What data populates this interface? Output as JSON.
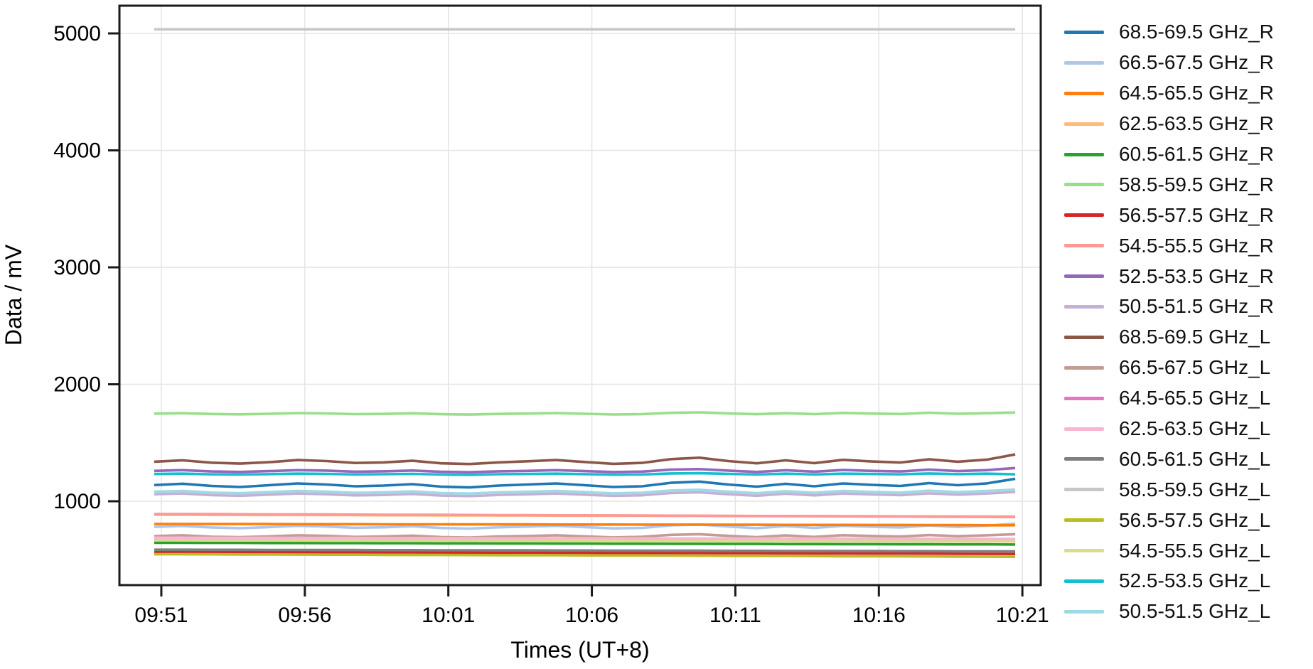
{
  "figure": {
    "x_axis_label": "Times (UT+8)",
    "y_axis_label": "Data / mV"
  },
  "chart_data": {
    "type": "line",
    "title": "",
    "xlabel": "Times (UT+8)",
    "ylabel": "Data / mV",
    "grid": true,
    "legend_position": "right",
    "x_tick_labels": [
      "09:51",
      "09:56",
      "10:01",
      "10:06",
      "10:11",
      "10:16",
      "10:21"
    ],
    "x_tick_minutes": [
      0,
      5,
      10,
      15,
      20,
      25,
      30
    ],
    "y_ticks": [
      1000,
      2000,
      3000,
      4000,
      5000
    ],
    "xlim_minutes": [
      -1.46,
      30.64
    ],
    "ylim": [
      283,
      5237
    ],
    "t_start_min": -0.25,
    "t_step_min": 1.0,
    "axis_color": "#1a1a1a",
    "grid_color": "#e4e4e4",
    "series": [
      {
        "name": "68.5-69.5 GHz_R",
        "color": "#1f77b4",
        "values": [
          1138,
          1150,
          1131,
          1122,
          1137,
          1152,
          1143,
          1128,
          1134,
          1146,
          1125,
          1118,
          1134,
          1143,
          1152,
          1137,
          1122,
          1128,
          1158,
          1168,
          1143,
          1125,
          1149,
          1128,
          1152,
          1140,
          1131,
          1155,
          1137,
          1152,
          1192
        ]
      },
      {
        "name": "66.5-67.5 GHz_R",
        "color": "#aec7e8",
        "values": [
          781,
          789,
          776,
          770,
          779,
          790,
          784,
          773,
          777,
          786,
          771,
          766,
          777,
          783,
          790,
          779,
          768,
          772,
          794,
          801,
          784,
          770,
          788,
          772,
          790,
          782,
          776,
          793,
          780,
          792,
          808
        ]
      },
      {
        "name": "64.5-65.5 GHz_R",
        "color": "#ff7f0e",
        "values": [
          806,
          806,
          805,
          805,
          805,
          804,
          804,
          804,
          803,
          803,
          803,
          802,
          802,
          802,
          801,
          801,
          801,
          800,
          800,
          800,
          799,
          799,
          798,
          798,
          798,
          797,
          797,
          796,
          796,
          795,
          795
        ]
      },
      {
        "name": "62.5-63.5 GHz_R",
        "color": "#ffbb78",
        "values": [
          884,
          884,
          883,
          883,
          882,
          882,
          881,
          881,
          880,
          880,
          879,
          879,
          878,
          878,
          877,
          877,
          876,
          876,
          875,
          875,
          874,
          874,
          873,
          873,
          872,
          872,
          871,
          871,
          870,
          870,
          869
        ]
      },
      {
        "name": "60.5-61.5 GHz_R",
        "color": "#2ca02c",
        "values": [
          645,
          645,
          644,
          644,
          643,
          643,
          642,
          642,
          641,
          641,
          640,
          640,
          639,
          639,
          638,
          638,
          637,
          637,
          636,
          636,
          635,
          635,
          634,
          634,
          633,
          633,
          632,
          632,
          631,
          631,
          630
        ]
      },
      {
        "name": "58.5-59.5 GHz_R",
        "color": "#98df8a",
        "values": [
          1749,
          1753,
          1746,
          1743,
          1748,
          1754,
          1751,
          1745,
          1747,
          1752,
          1744,
          1741,
          1747,
          1750,
          1754,
          1748,
          1742,
          1745,
          1756,
          1760,
          1751,
          1744,
          1753,
          1745,
          1755,
          1750,
          1746,
          1757,
          1748,
          1753,
          1759
        ]
      },
      {
        "name": "56.5-57.5 GHz_R",
        "color": "#d62728",
        "values": [
          566,
          566,
          565,
          565,
          564,
          564,
          563,
          563,
          562,
          562,
          561,
          561,
          560,
          560,
          559,
          559,
          558,
          558,
          557,
          557,
          556,
          556,
          555,
          554,
          554,
          553,
          553,
          552,
          551,
          550,
          549
        ]
      },
      {
        "name": "54.5-55.5 GHz_R",
        "color": "#ff9896",
        "values": [
          891,
          891,
          890,
          889,
          888,
          888,
          887,
          886,
          885,
          884,
          884,
          883,
          882,
          881,
          880,
          880,
          879,
          878,
          877,
          876,
          875,
          874,
          873,
          872,
          871,
          870,
          869,
          868,
          867,
          866,
          865
        ]
      },
      {
        "name": "52.5-53.5 GHz_R",
        "color": "#9467bd",
        "values": [
          1260,
          1266,
          1255,
          1251,
          1258,
          1266,
          1262,
          1253,
          1256,
          1263,
          1252,
          1248,
          1256,
          1260,
          1266,
          1258,
          1250,
          1254,
          1270,
          1275,
          1262,
          1251,
          1265,
          1253,
          1267,
          1260,
          1255,
          1270,
          1258,
          1266,
          1284
        ]
      },
      {
        "name": "50.5-51.5 GHz_R",
        "color": "#c5b0d5",
        "values": [
          1060,
          1066,
          1052,
          1047,
          1056,
          1066,
          1060,
          1050,
          1054,
          1062,
          1048,
          1044,
          1054,
          1059,
          1066,
          1056,
          1046,
          1051,
          1070,
          1076,
          1060,
          1047,
          1064,
          1050,
          1066,
          1058,
          1052,
          1068,
          1056,
          1066,
          1080
        ]
      },
      {
        "name": "68.5-69.5 GHz_L",
        "color": "#8c564b",
        "values": [
          1338,
          1350,
          1330,
          1322,
          1334,
          1352,
          1344,
          1327,
          1332,
          1346,
          1324,
          1318,
          1332,
          1342,
          1352,
          1336,
          1320,
          1328,
          1360,
          1372,
          1344,
          1324,
          1350,
          1326,
          1354,
          1340,
          1331,
          1358,
          1338,
          1355,
          1400
        ]
      },
      {
        "name": "66.5-67.5 GHz_L",
        "color": "#c49c94",
        "values": [
          702,
          709,
          697,
          693,
          700,
          709,
          704,
          695,
          699,
          706,
          694,
          690,
          699,
          703,
          709,
          700,
          691,
          696,
          713,
          718,
          704,
          693,
          708,
          695,
          710,
          703,
          698,
          711,
          701,
          709,
          718
        ]
      },
      {
        "name": "64.5-65.5 GHz_L",
        "color": "#e377c2",
        "values": [
          677,
          677,
          676,
          676,
          676,
          675,
          675,
          675,
          674,
          674,
          674,
          673,
          673,
          673,
          672,
          672,
          672,
          671,
          671,
          671,
          670,
          670,
          670,
          669,
          669,
          669,
          668,
          668,
          668,
          667,
          667
        ]
      },
      {
        "name": "62.5-63.5 GHz_L",
        "color": "#f7b6d2",
        "values": [
          688,
          688,
          687,
          687,
          687,
          686,
          686,
          686,
          685,
          685,
          685,
          684,
          684,
          684,
          683,
          683,
          683,
          682,
          682,
          682,
          681,
          681,
          681,
          680,
          680,
          680,
          679,
          679,
          679,
          678,
          678
        ]
      },
      {
        "name": "60.5-61.5 GHz_L",
        "color": "#7f7f7f",
        "values": [
          586,
          586,
          585,
          585,
          584,
          584,
          583,
          583,
          582,
          582,
          581,
          581,
          580,
          580,
          579,
          579,
          578,
          578,
          577,
          577,
          576,
          576,
          575,
          575,
          574,
          574,
          573,
          573,
          572,
          572,
          571
        ]
      },
      {
        "name": "58.5-59.5 GHz_L",
        "color": "#c7c7c7",
        "values": [
          5035,
          5035,
          5035,
          5035,
          5035,
          5035,
          5035,
          5035,
          5035,
          5035,
          5035,
          5035,
          5035,
          5035,
          5035,
          5035,
          5035,
          5035,
          5035,
          5035,
          5035,
          5035,
          5035,
          5035,
          5035,
          5035,
          5035,
          5035,
          5035,
          5035,
          5035
        ]
      },
      {
        "name": "56.5-57.5 GHz_L",
        "color": "#bcbd22",
        "values": [
          547,
          547,
          546,
          545,
          545,
          544,
          543,
          543,
          542,
          541,
          541,
          540,
          539,
          538,
          538,
          537,
          536,
          536,
          535,
          534,
          533,
          533,
          532,
          531,
          530,
          530,
          529,
          528,
          527,
          526,
          525
        ]
      },
      {
        "name": "54.5-55.5 GHz_L",
        "color": "#dbdb8d",
        "values": [
          666,
          666,
          665,
          665,
          665,
          664,
          664,
          664,
          663,
          663,
          663,
          662,
          662,
          662,
          661,
          661,
          661,
          660,
          660,
          660,
          659,
          659,
          659,
          658,
          658,
          658,
          657,
          657,
          657,
          656,
          656
        ]
      },
      {
        "name": "52.5-53.5 GHz_L",
        "color": "#17becf",
        "values": [
          1233,
          1236,
          1230,
          1228,
          1232,
          1236,
          1234,
          1229,
          1231,
          1234,
          1228,
          1226,
          1231,
          1233,
          1236,
          1232,
          1227,
          1229,
          1238,
          1240,
          1234,
          1228,
          1236,
          1229,
          1236,
          1233,
          1230,
          1238,
          1232,
          1236,
          1230
        ]
      },
      {
        "name": "50.5-51.5 GHz_L",
        "color": "#9edae5",
        "values": [
          1082,
          1088,
          1074,
          1069,
          1078,
          1088,
          1082,
          1072,
          1076,
          1084,
          1070,
          1066,
          1076,
          1081,
          1088,
          1078,
          1068,
          1073,
          1092,
          1098,
          1082,
          1069,
          1086,
          1072,
          1088,
          1080,
          1074,
          1090,
          1078,
          1088,
          1100
        ]
      }
    ]
  }
}
